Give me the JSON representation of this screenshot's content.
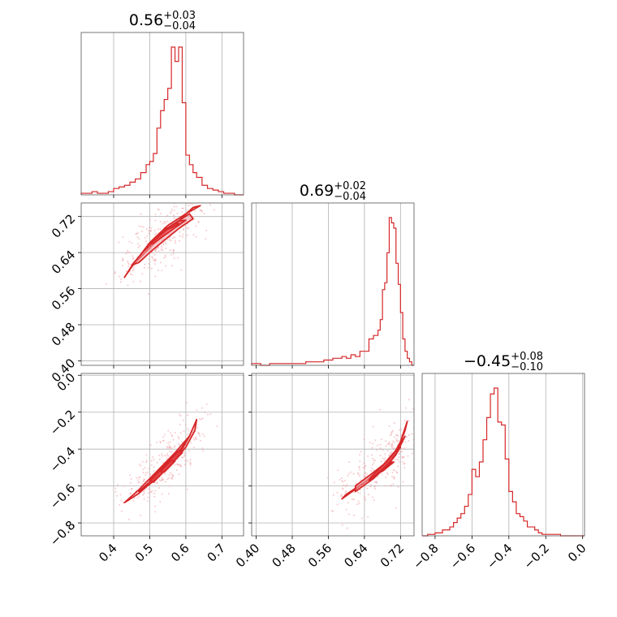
{
  "colors": {
    "series": "#d62728",
    "fill_inner": "#e8414a",
    "fill_outer": "#f3a2a8",
    "scatter": "#f1a7ad"
  },
  "chart_data": {
    "type": "corner",
    "grid": true,
    "parameters": [
      {
        "range": [
          0.31,
          0.76
        ],
        "ticks": [
          0.4,
          0.5,
          0.6,
          0.7
        ],
        "tick_labels": [
          "0.4",
          "0.5",
          "0.6",
          "0.7"
        ],
        "title": {
          "value": "0.56",
          "plus": "+0.03",
          "minus": "−0.04"
        },
        "histogram": {
          "edges": [
            0.31,
            0.325,
            0.34,
            0.355,
            0.37,
            0.385,
            0.4,
            0.415,
            0.43,
            0.445,
            0.46,
            0.475,
            0.49,
            0.5,
            0.51,
            0.52,
            0.53,
            0.54,
            0.55,
            0.56,
            0.57,
            0.58,
            0.59,
            0.6,
            0.61,
            0.62,
            0.63,
            0.645,
            0.66,
            0.675,
            0.69,
            0.705,
            0.72,
            0.735,
            0.76
          ],
          "counts": [
            0.01,
            0.01,
            0.02,
            0.01,
            0.01,
            0.02,
            0.04,
            0.05,
            0.06,
            0.08,
            0.1,
            0.14,
            0.19,
            0.21,
            0.26,
            0.42,
            0.53,
            0.6,
            0.67,
            0.93,
            0.84,
            0.93,
            0.58,
            0.25,
            0.19,
            0.14,
            0.11,
            0.06,
            0.04,
            0.03,
            0.02,
            0.01,
            0.01,
            0.0
          ]
        }
      },
      {
        "range": [
          0.39,
          0.75
        ],
        "ticks": [
          0.4,
          0.48,
          0.56,
          0.64,
          0.72
        ],
        "tick_labels": [
          "0.40",
          "0.48",
          "0.56",
          "0.64",
          "0.72"
        ],
        "title": {
          "value": "0.69",
          "plus": "+0.02",
          "minus": "−0.04"
        },
        "histogram": {
          "edges": [
            0.39,
            0.41,
            0.43,
            0.45,
            0.47,
            0.49,
            0.51,
            0.53,
            0.55,
            0.57,
            0.59,
            0.6,
            0.61,
            0.62,
            0.63,
            0.64,
            0.65,
            0.66,
            0.67,
            0.675,
            0.68,
            0.685,
            0.69,
            0.695,
            0.7,
            0.705,
            0.71,
            0.715,
            0.72,
            0.725,
            0.73,
            0.735,
            0.74,
            0.745,
            0.75
          ],
          "counts": [
            0.01,
            0.0,
            0.01,
            0.01,
            0.01,
            0.01,
            0.02,
            0.02,
            0.03,
            0.04,
            0.05,
            0.04,
            0.06,
            0.05,
            0.08,
            0.08,
            0.15,
            0.17,
            0.2,
            0.26,
            0.43,
            0.47,
            0.64,
            0.84,
            0.81,
            0.78,
            0.58,
            0.46,
            0.3,
            0.15,
            0.08,
            0.04,
            0.02,
            0.0
          ]
        }
      },
      {
        "range": [
          -0.87,
          0.01
        ],
        "ticks": [
          -0.8,
          -0.6,
          -0.4,
          -0.2,
          0.0
        ],
        "tick_labels": [
          "−0.8",
          "−0.6",
          "−0.4",
          "−0.2",
          "0.0"
        ],
        "title": {
          "value": "−0.45",
          "plus": "+0.08",
          "minus": "−0.10"
        },
        "histogram": {
          "edges": [
            -0.87,
            -0.84,
            -0.8,
            -0.76,
            -0.72,
            -0.7,
            -0.68,
            -0.66,
            -0.64,
            -0.62,
            -0.6,
            -0.58,
            -0.56,
            -0.54,
            -0.52,
            -0.5,
            -0.48,
            -0.46,
            -0.44,
            -0.42,
            -0.4,
            -0.38,
            -0.36,
            -0.34,
            -0.32,
            -0.3,
            -0.28,
            -0.26,
            -0.24,
            -0.22,
            -0.2,
            -0.16,
            -0.12,
            -0.08,
            0.01
          ],
          "counts": [
            0.0,
            0.01,
            0.02,
            0.04,
            0.06,
            0.09,
            0.12,
            0.15,
            0.2,
            0.28,
            0.45,
            0.4,
            0.5,
            0.65,
            0.8,
            0.96,
            1.0,
            0.77,
            0.75,
            0.52,
            0.3,
            0.23,
            0.15,
            0.13,
            0.1,
            0.06,
            0.06,
            0.04,
            0.02,
            0.01,
            0.01,
            0.01,
            0.0,
            0.0
          ]
        }
      }
    ],
    "pairs": [
      {
        "x_param": 0,
        "y_param": 1,
        "levels": [
          [
            [
              0.43,
              0.585
            ],
            [
              0.46,
              0.62
            ],
            [
              0.5,
              0.662
            ],
            [
              0.55,
              0.7
            ],
            [
              0.6,
              0.726
            ],
            [
              0.64,
              0.744
            ],
            [
              0.62,
              0.74
            ],
            [
              0.58,
              0.71
            ],
            [
              0.53,
              0.676
            ],
            [
              0.49,
              0.642
            ],
            [
              0.45,
              0.61
            ]
          ],
          [
            [
              0.45,
              0.612
            ],
            [
              0.48,
              0.64
            ],
            [
              0.52,
              0.672
            ],
            [
              0.56,
              0.7
            ],
            [
              0.61,
              0.726
            ],
            [
              0.62,
              0.715
            ],
            [
              0.58,
              0.693
            ],
            [
              0.54,
              0.667
            ],
            [
              0.5,
              0.64
            ],
            [
              0.47,
              0.618
            ]
          ],
          [
            [
              0.5,
              0.66
            ],
            [
              0.54,
              0.688
            ],
            [
              0.58,
              0.71
            ],
            [
              0.6,
              0.712
            ],
            [
              0.57,
              0.695
            ],
            [
              0.53,
              0.672
            ],
            [
              0.51,
              0.66
            ]
          ],
          [
            [
              0.54,
              0.69
            ],
            [
              0.57,
              0.705
            ],
            [
              0.58,
              0.704
            ],
            [
              0.56,
              0.695
            ]
          ]
        ]
      },
      {
        "x_param": 0,
        "y_param": 2,
        "levels": [
          [
            [
              0.43,
              -0.69
            ],
            [
              0.47,
              -0.62
            ],
            [
              0.52,
              -0.52
            ],
            [
              0.57,
              -0.42
            ],
            [
              0.61,
              -0.33
            ],
            [
              0.63,
              -0.24
            ],
            [
              0.625,
              -0.3
            ],
            [
              0.6,
              -0.39
            ],
            [
              0.56,
              -0.48
            ],
            [
              0.51,
              -0.57
            ],
            [
              0.47,
              -0.64
            ]
          ],
          [
            [
              0.47,
              -0.63
            ],
            [
              0.51,
              -0.56
            ],
            [
              0.55,
              -0.48
            ],
            [
              0.59,
              -0.39
            ],
            [
              0.61,
              -0.33
            ],
            [
              0.59,
              -0.4
            ],
            [
              0.55,
              -0.5
            ],
            [
              0.5,
              -0.59
            ]
          ],
          [
            [
              0.5,
              -0.57
            ],
            [
              0.54,
              -0.49
            ],
            [
              0.58,
              -0.41
            ],
            [
              0.59,
              -0.42
            ],
            [
              0.55,
              -0.5
            ],
            [
              0.51,
              -0.58
            ]
          ],
          [
            [
              0.53,
              -0.52
            ],
            [
              0.56,
              -0.46
            ],
            [
              0.57,
              -0.465
            ],
            [
              0.54,
              -0.525
            ]
          ]
        ]
      },
      {
        "x_param": 1,
        "y_param": 2,
        "levels": [
          [
            [
              0.59,
              -0.67
            ],
            [
              0.63,
              -0.6
            ],
            [
              0.67,
              -0.53
            ],
            [
              0.7,
              -0.45
            ],
            [
              0.72,
              -0.36
            ],
            [
              0.735,
              -0.25
            ],
            [
              0.73,
              -0.3
            ],
            [
              0.71,
              -0.42
            ],
            [
              0.68,
              -0.5
            ],
            [
              0.64,
              -0.58
            ],
            [
              0.6,
              -0.645
            ]
          ],
          [
            [
              0.62,
              -0.63
            ],
            [
              0.66,
              -0.56
            ],
            [
              0.69,
              -0.49
            ],
            [
              0.71,
              -0.43
            ],
            [
              0.73,
              -0.33
            ],
            [
              0.715,
              -0.39
            ],
            [
              0.69,
              -0.47
            ],
            [
              0.65,
              -0.545
            ],
            [
              0.62,
              -0.6
            ]
          ],
          [
            [
              0.65,
              -0.57
            ],
            [
              0.68,
              -0.51
            ],
            [
              0.7,
              -0.46
            ],
            [
              0.72,
              -0.39
            ],
            [
              0.705,
              -0.42
            ],
            [
              0.68,
              -0.49
            ],
            [
              0.655,
              -0.55
            ]
          ],
          [
            [
              0.67,
              -0.53
            ],
            [
              0.7,
              -0.47
            ],
            [
              0.705,
              -0.47
            ],
            [
              0.68,
              -0.52
            ]
          ]
        ]
      }
    ]
  }
}
